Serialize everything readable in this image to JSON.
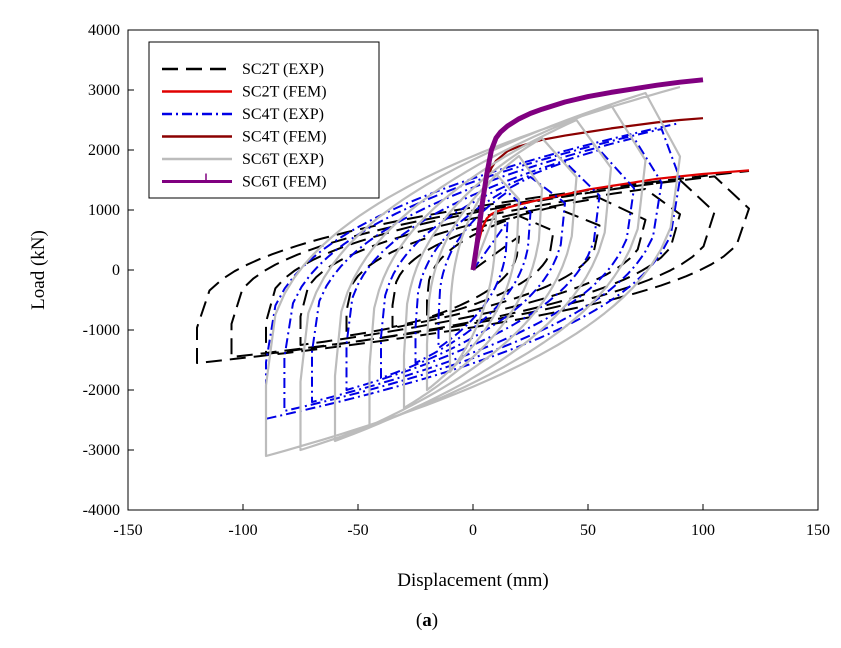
{
  "chart_data": {
    "type": "line",
    "title": "",
    "xlabel": "Displacement (mm)",
    "ylabel": "Load (kN)",
    "xlim": [
      -150,
      150
    ],
    "ylim": [
      -4000,
      4000
    ],
    "xticks": [
      -150,
      -100,
      -50,
      0,
      50,
      100,
      150
    ],
    "yticks": [
      -4000,
      -3000,
      -2000,
      -1000,
      0,
      1000,
      2000,
      3000,
      4000
    ],
    "legend_position": "top-left",
    "caption_open": "(",
    "caption_letter": "a",
    "caption_close": ")",
    "series": [
      {
        "name": "SC2T (EXP)",
        "color": "#000000",
        "style": "long-dash",
        "amplitudes": [
          20,
          35,
          55,
          75,
          90,
          105,
          120
        ],
        "peaks_pos": [
          900,
          1050,
          1200,
          1350,
          1500,
          1560,
          1650
        ],
        "peaks_neg": [
          -800,
          -950,
          -1100,
          -1250,
          -1400,
          -1450,
          -1550
        ]
      },
      {
        "name": "SC2T (FEM)",
        "color": "#e00000",
        "style": "solid",
        "x": [
          0,
          2,
          4,
          6,
          8,
          10,
          15,
          20,
          30,
          40,
          50,
          60,
          70,
          80,
          90,
          100,
          110,
          120
        ],
        "y": [
          0,
          400,
          700,
          860,
          930,
          970,
          1040,
          1090,
          1180,
          1260,
          1340,
          1400,
          1460,
          1520,
          1560,
          1600,
          1630,
          1660
        ]
      },
      {
        "name": "SC4T (EXP)",
        "color": "#0000e6",
        "style": "dash-dot",
        "amplitudes": [
          15,
          25,
          40,
          55,
          70,
          82,
          90
        ],
        "peaks_pos": [
          1300,
          1550,
          1800,
          2000,
          2200,
          2350,
          2450
        ],
        "peaks_neg": [
          -1300,
          -1550,
          -1800,
          -2000,
          -2200,
          -2350,
          -2480
        ]
      },
      {
        "name": "SC4T (FEM)",
        "color": "#8b0000",
        "style": "solid",
        "x": [
          0,
          2,
          4,
          6,
          8,
          10,
          15,
          20,
          30,
          40,
          50,
          60,
          70,
          80,
          90,
          100
        ],
        "y": [
          0,
          700,
          1200,
          1500,
          1700,
          1820,
          1980,
          2060,
          2170,
          2240,
          2300,
          2360,
          2410,
          2460,
          2500,
          2530
        ]
      },
      {
        "name": "SC6T (EXP)",
        "color": "#bcbcbc",
        "style": "solid",
        "amplitudes": [
          10,
          20,
          30,
          45,
          60,
          75,
          90
        ],
        "peaks_pos": [
          1600,
          1900,
          2200,
          2500,
          2750,
          2950,
          3050
        ],
        "peaks_neg": [
          -1700,
          -2000,
          -2300,
          -2600,
          -2850,
          -3000,
          -3100
        ]
      },
      {
        "name": "SC6T (FEM)",
        "color": "#800080",
        "style": "solid-thick",
        "x": [
          0,
          2,
          4,
          6,
          8,
          10,
          12,
          15,
          20,
          25,
          30,
          40,
          50,
          60,
          70,
          80,
          90,
          100
        ],
        "y": [
          0,
          500,
          1100,
          1600,
          2000,
          2200,
          2300,
          2400,
          2520,
          2610,
          2680,
          2800,
          2890,
          2960,
          3020,
          3080,
          3130,
          3170
        ]
      }
    ]
  }
}
